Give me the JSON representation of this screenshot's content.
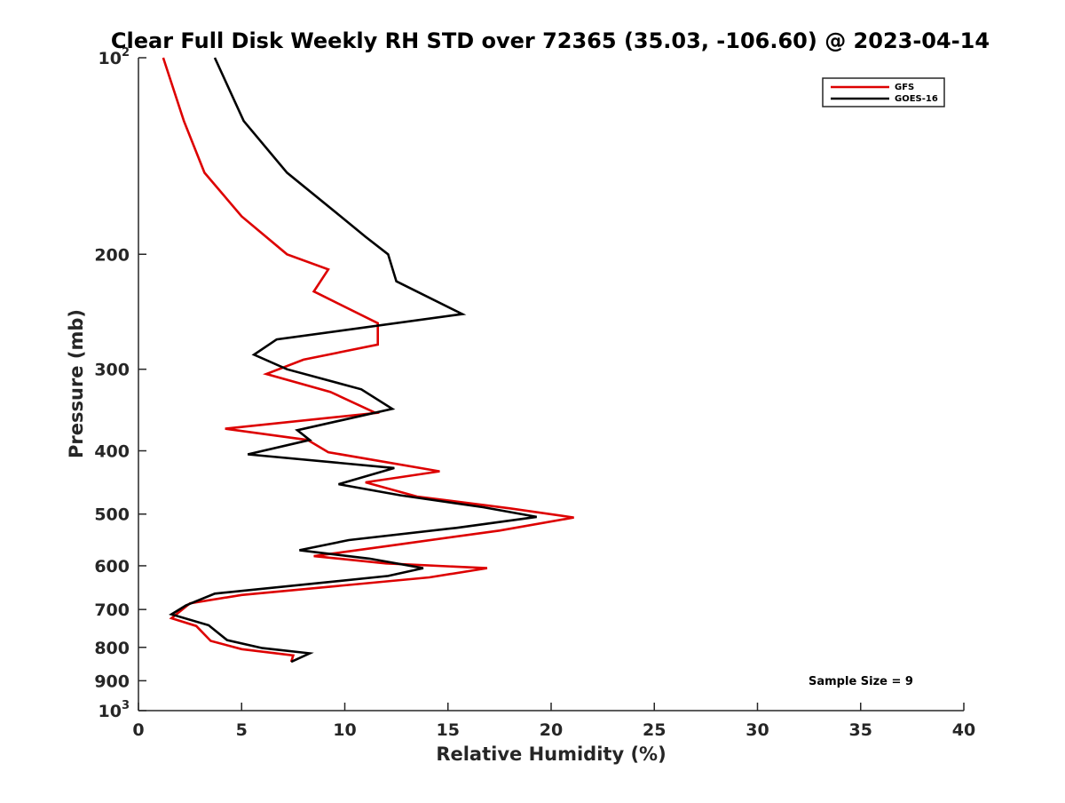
{
  "chart_data": {
    "type": "line",
    "title": "Clear Full Disk Weekly RH STD over 72365 (35.03, -106.60) @ 2023-04-14",
    "xlabel": "Relative Humidity (%)",
    "ylabel": "Pressure (mb)",
    "xlim": [
      0,
      40
    ],
    "ylim": [
      100,
      1000
    ],
    "yscale": "log",
    "y_reversed": true,
    "grid": false,
    "legend_position": "top-right",
    "x_ticks": [
      0,
      5,
      10,
      15,
      20,
      25,
      30,
      35,
      40
    ],
    "x_tick_labels": [
      "0",
      "5",
      "10",
      "15",
      "20",
      "25",
      "30",
      "35",
      "40"
    ],
    "y_ticks": [
      {
        "value": 100,
        "base": "10",
        "exp": "2"
      },
      {
        "value": 200,
        "base": "200",
        "exp": ""
      },
      {
        "value": 300,
        "base": "300",
        "exp": ""
      },
      {
        "value": 400,
        "base": "400",
        "exp": ""
      },
      {
        "value": 500,
        "base": "500",
        "exp": ""
      },
      {
        "value": 600,
        "base": "600",
        "exp": ""
      },
      {
        "value": 700,
        "base": "700",
        "exp": ""
      },
      {
        "value": 800,
        "base": "800",
        "exp": ""
      },
      {
        "value": 900,
        "base": "900",
        "exp": ""
      },
      {
        "value": 1000,
        "base": "10",
        "exp": "3"
      }
    ],
    "annotation": "Sample Size = 9",
    "series": [
      {
        "name": "GFS",
        "color": "#dd0000",
        "points": [
          [
            1.2,
            100
          ],
          [
            2.2,
            125
          ],
          [
            3.2,
            150
          ],
          [
            5.0,
            175
          ],
          [
            7.2,
            200
          ],
          [
            9.2,
            211
          ],
          [
            8.5,
            228
          ],
          [
            11.6,
            255
          ],
          [
            11.6,
            275
          ],
          [
            8.0,
            290
          ],
          [
            6.2,
            305
          ],
          [
            9.3,
            325
          ],
          [
            11.5,
            350
          ],
          [
            4.2,
            370
          ],
          [
            8.2,
            385
          ],
          [
            9.2,
            402
          ],
          [
            14.6,
            430
          ],
          [
            11.0,
            447
          ],
          [
            13.5,
            470
          ],
          [
            18.0,
            490
          ],
          [
            21.1,
            506
          ],
          [
            17.5,
            530
          ],
          [
            12.0,
            560
          ],
          [
            8.5,
            580
          ],
          [
            12.0,
            595
          ],
          [
            16.9,
            605
          ],
          [
            14.1,
            625
          ],
          [
            5.0,
            665
          ],
          [
            2.5,
            685
          ],
          [
            1.6,
            722
          ],
          [
            2.8,
            742
          ],
          [
            3.5,
            782
          ],
          [
            5.0,
            805
          ],
          [
            7.5,
            823
          ],
          [
            7.4,
            842
          ]
        ]
      },
      {
        "name": "GOES-16",
        "color": "#000000",
        "points": [
          [
            3.7,
            100
          ],
          [
            5.1,
            125
          ],
          [
            7.2,
            150
          ],
          [
            9.8,
            175
          ],
          [
            11.0,
            188
          ],
          [
            12.1,
            200
          ],
          [
            12.5,
            220
          ],
          [
            15.7,
            247
          ],
          [
            6.7,
            270
          ],
          [
            5.6,
            285
          ],
          [
            7.2,
            300
          ],
          [
            10.8,
            322
          ],
          [
            12.3,
            345
          ],
          [
            7.7,
            372
          ],
          [
            8.3,
            385
          ],
          [
            5.3,
            405
          ],
          [
            12.4,
            425
          ],
          [
            9.7,
            450
          ],
          [
            12.7,
            468
          ],
          [
            16.7,
            488
          ],
          [
            19.3,
            505
          ],
          [
            15.4,
            525
          ],
          [
            10.2,
            548
          ],
          [
            7.8,
            568
          ],
          [
            11.2,
            585
          ],
          [
            13.8,
            605
          ],
          [
            12.1,
            622
          ],
          [
            3.7,
            662
          ],
          [
            2.3,
            690
          ],
          [
            1.6,
            712
          ],
          [
            3.4,
            740
          ],
          [
            4.3,
            780
          ],
          [
            6.0,
            802
          ],
          [
            8.3,
            817
          ],
          [
            7.4,
            842
          ]
        ]
      }
    ]
  }
}
